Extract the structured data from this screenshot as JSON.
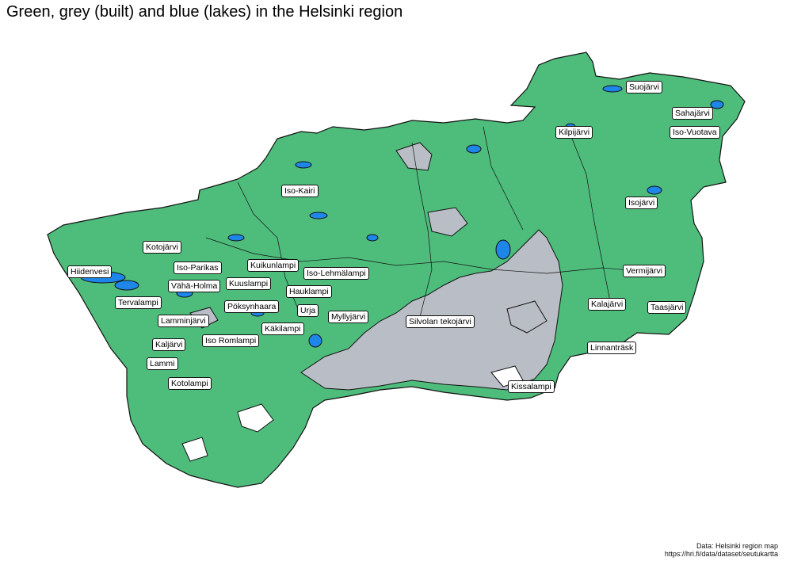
{
  "title": "Green, grey (built) and blue (lakes) in the Helsinki region",
  "colors": {
    "green": "#4ebd7c",
    "grey": "#b9bec6",
    "blue": "#1d86e8",
    "outline": "#111111"
  },
  "lakes": [
    "Suojärvi",
    "Sahajärvi",
    "Kilpijärvi",
    "Iso-Vuotava",
    "Iso-Kairi",
    "Isojärvi",
    "Kotojärvi",
    "Iso-Parikas",
    "Kuikunlampi",
    "Hiidenvesi",
    "Iso-Lehmälampi",
    "Vermijärvi",
    "Vähä-Holma",
    "Kuuslampi",
    "Hauklampi",
    "Tervalampi",
    "Pöksynhaara",
    "Kalajärvi",
    "Taasjärvi",
    "Urja",
    "Myllyjärvi",
    "Lamminjärvi",
    "Silvolan tekojärvi",
    "Käkilampi",
    "Iso Romlampi",
    "Kaljärvi",
    "Linnanträsk",
    "Lammi",
    "Kotolampi",
    "Kissalampi"
  ],
  "caption": {
    "line1": "Data: Helsinki region map",
    "line2": "https://hri.fi/data/dataset/seutukartta"
  }
}
